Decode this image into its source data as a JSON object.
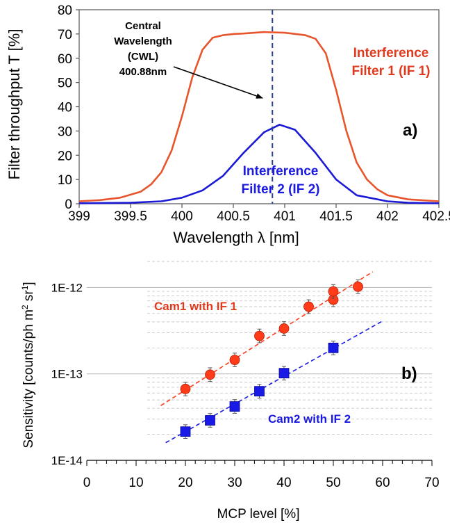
{
  "colors": {
    "if1": "#e8552c",
    "if2": "#1a1ad6",
    "cam1": "#ff3b1a",
    "cam2": "#1a1ae6",
    "cwl": "#2a3f8f"
  },
  "chart_data": [
    {
      "type": "line",
      "panel_label": "a)",
      "xlabel": "Wavelength λ [nm]",
      "ylabel": "Filter throughput T [%]",
      "xlim": [
        399,
        402.5
      ],
      "ylim": [
        0,
        80
      ],
      "xticks": [
        "399",
        "399.5",
        "400",
        "400.5",
        "401",
        "401.5",
        "402",
        "402.5"
      ],
      "yticks": [
        "0",
        "10",
        "20",
        "30",
        "40",
        "50",
        "60",
        "70",
        "80"
      ],
      "cwl": {
        "x": 400.88,
        "label_lines": [
          "Central",
          "Wavelength",
          "(CWL)",
          "400.88nm"
        ]
      },
      "series": [
        {
          "key": "if1",
          "label_lines": [
            "Interference",
            "Filter 1 (IF 1)"
          ],
          "x": [
            399,
            399.2,
            399.4,
            399.6,
            399.7,
            399.8,
            399.9,
            400.0,
            400.1,
            400.2,
            400.3,
            400.4,
            400.5,
            400.6,
            400.8,
            401.0,
            401.2,
            401.3,
            401.4,
            401.5,
            401.6,
            401.7,
            401.8,
            401.9,
            402.0,
            402.2,
            402.5
          ],
          "y": [
            1.0,
            1.5,
            2.5,
            5.0,
            8.0,
            13.0,
            22.0,
            36.0,
            52.0,
            63.5,
            68.5,
            69.5,
            70.0,
            70.2,
            70.8,
            70.5,
            69.5,
            68.0,
            62.0,
            47.0,
            30.0,
            17.0,
            10.0,
            6.0,
            3.5,
            1.8,
            1.0
          ]
        },
        {
          "key": "if2",
          "label_lines": [
            "Interference",
            "Filter 2 (IF 2)"
          ],
          "x": [
            399,
            399.5,
            399.8,
            400.0,
            400.2,
            400.4,
            400.6,
            400.8,
            400.95,
            401.1,
            401.3,
            401.5,
            401.7,
            402.0,
            402.2,
            402.5
          ],
          "y": [
            0.2,
            0.4,
            1.0,
            2.5,
            5.5,
            11.5,
            21.0,
            29.5,
            32.6,
            30.5,
            21.0,
            10.0,
            3.5,
            1.0,
            0.4,
            0.2
          ]
        }
      ]
    },
    {
      "type": "scatter",
      "panel_label": "b)",
      "xlabel": "MCP level [%]",
      "ylabel": "Sensitivity [counts/ph m",
      "ylabel_sup1": "2",
      "ylabel_mid": " sr",
      "ylabel_sup2": "1",
      "ylabel_end": "]",
      "yscale": "log",
      "xlim": [
        0,
        70
      ],
      "ylim": [
        1e-14,
        2e-12
      ],
      "xticks": [
        "0",
        "10",
        "20",
        "30",
        "40",
        "50",
        "60",
        "70"
      ],
      "yticks": [
        "1E-14",
        "1E-13",
        "1E-12"
      ],
      "series": [
        {
          "key": "cam1",
          "label": "Cam1 with IF 1",
          "marker": "circle",
          "x": [
            20,
            25,
            30,
            35,
            40,
            45,
            50,
            50,
            55
          ],
          "y": [
            6.7e-14,
            9.8e-14,
            1.45e-13,
            2.75e-13,
            3.35e-13,
            6e-13,
            7.2e-13,
            9e-13,
            1.02e-12
          ],
          "trend": {
            "x": [
              15,
              58
            ],
            "y": [
              4.3e-14,
              1.52e-12
            ]
          }
        },
        {
          "key": "cam2",
          "label": "Cam2 with IF 2",
          "marker": "square",
          "x": [
            20,
            25,
            30,
            35,
            40,
            50
          ],
          "y": [
            2.15e-14,
            2.9e-14,
            4.2e-14,
            6.3e-14,
            1.02e-13,
            2e-13
          ],
          "trend": {
            "x": [
              16,
              60
            ],
            "y": [
              1.6e-14,
              4.1e-13
            ]
          }
        }
      ]
    }
  ]
}
